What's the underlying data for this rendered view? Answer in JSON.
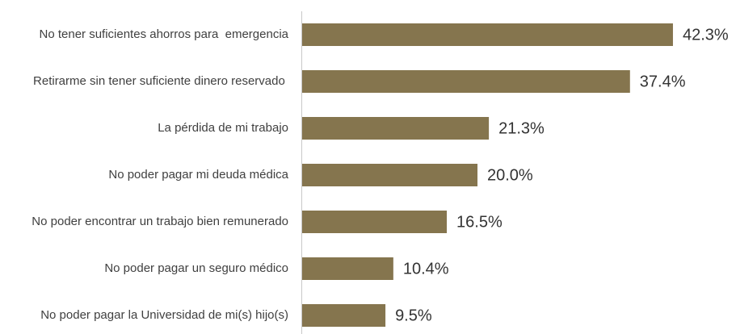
{
  "chart_data": {
    "type": "bar",
    "orientation": "horizontal",
    "categories": [
      "No tener suficientes ahorros para  emergencia",
      "Retirarme sin tener suficiente dinero reservado ",
      "La pérdida de mi trabajo",
      "No poder pagar mi deuda médica",
      "No poder encontrar un trabajo bien remunerado",
      "No poder pagar un seguro médico",
      "No poder pagar la Universidad de mi(s) hijo(s)"
    ],
    "values": [
      42.3,
      37.4,
      21.3,
      20.0,
      16.5,
      10.4,
      9.5
    ],
    "value_labels": [
      "42.3%",
      "37.4%",
      "21.3%",
      "20.0%",
      "16.5%",
      "10.4%",
      "9.5%"
    ],
    "color": "#85754e"
  }
}
